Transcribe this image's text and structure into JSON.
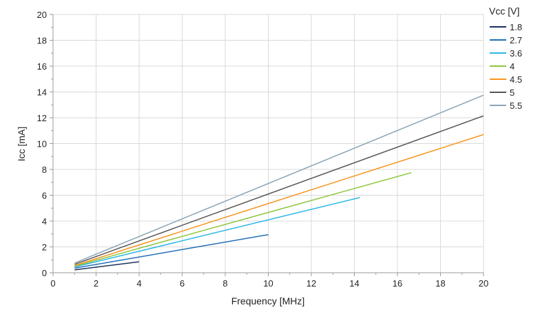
{
  "chart_data": {
    "type": "line",
    "xlabel": "Frequency [MHz]",
    "ylabel": "Icc [mA]",
    "xlim": [
      0,
      20
    ],
    "ylim": [
      0,
      20
    ],
    "xticks": [
      0,
      2,
      4,
      6,
      8,
      10,
      12,
      14,
      16,
      18,
      20
    ],
    "yticks": [
      0,
      2,
      4,
      6,
      8,
      10,
      12,
      14,
      16,
      18,
      20
    ],
    "grid": true,
    "legend": {
      "title": "Vcc [V]",
      "placement": "right"
    },
    "series": [
      {
        "name": "1.8",
        "color": "#1b2f5a",
        "x": [
          1,
          4
        ],
        "y": [
          0.22,
          0.85
        ]
      },
      {
        "name": "2.7",
        "color": "#1f6fb5",
        "x": [
          1,
          10
        ],
        "y": [
          0.35,
          2.95
        ]
      },
      {
        "name": "3.6",
        "color": "#29b6e8",
        "x": [
          1,
          14.25
        ],
        "y": [
          0.45,
          5.82
        ]
      },
      {
        "name": "4",
        "color": "#8cc63e",
        "x": [
          1,
          16.65
        ],
        "y": [
          0.5,
          7.75
        ]
      },
      {
        "name": "4.5",
        "color": "#f7941d",
        "x": [
          1,
          20
        ],
        "y": [
          0.55,
          10.7
        ]
      },
      {
        "name": "5",
        "color": "#555555",
        "x": [
          1,
          20
        ],
        "y": [
          0.65,
          12.15
        ]
      },
      {
        "name": "5.5",
        "color": "#8aa4b4",
        "x": [
          1,
          20
        ],
        "y": [
          0.75,
          13.75
        ]
      }
    ]
  }
}
